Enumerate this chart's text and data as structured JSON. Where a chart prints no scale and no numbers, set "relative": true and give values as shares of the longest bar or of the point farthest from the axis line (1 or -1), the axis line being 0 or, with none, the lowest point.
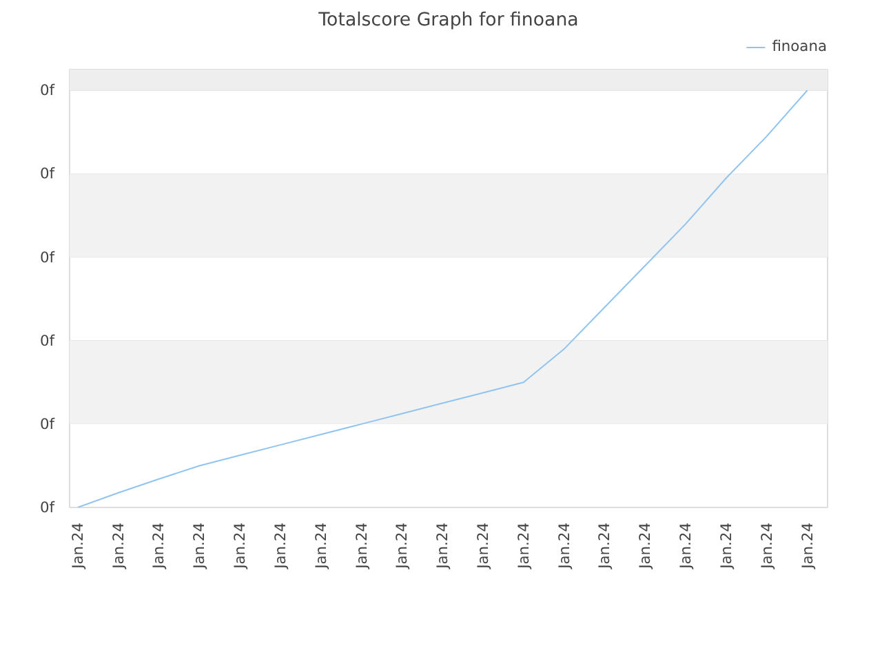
{
  "chart_data": {
    "type": "line",
    "title": "Totalscore Graph for finoana",
    "relative": true,
    "categories": [
      "Jan.24",
      "Jan.24",
      "Jan.24",
      "Jan.24",
      "Jan.24",
      "Jan.24",
      "Jan.24",
      "Jan.24",
      "Jan.24",
      "Jan.24",
      "Jan.24",
      "Jan.24",
      "Jan.24",
      "Jan.24",
      "Jan.24",
      "Jan.24",
      "Jan.24",
      "Jan.24",
      "Jan.24"
    ],
    "series": [
      {
        "name": "finoana",
        "color": "#90c4f0",
        "values": [
          0,
          0.035,
          0.068,
          0.1,
          0.125,
          0.15,
          0.175,
          0.2,
          0.225,
          0.25,
          0.275,
          0.3,
          0.38,
          0.48,
          0.58,
          0.68,
          0.79,
          0.89,
          1.0
        ]
      }
    ],
    "annotations": [
      "0f",
      "0f",
      "0f",
      "0f",
      "0f",
      "0f"
    ],
    "bands": [
      {
        "axis": "y",
        "from": 0.2,
        "to": 0.4,
        "color": "#f2f2f2"
      },
      {
        "axis": "y",
        "from": 0.6,
        "to": 0.8,
        "color": "#f2f2f2"
      },
      {
        "axis": "y",
        "from": 1.0,
        "to": 1.05,
        "color": "#eeeeee"
      }
    ],
    "grid": "y",
    "legend": "top right",
    "marker": "none",
    "line_style": "solid"
  }
}
